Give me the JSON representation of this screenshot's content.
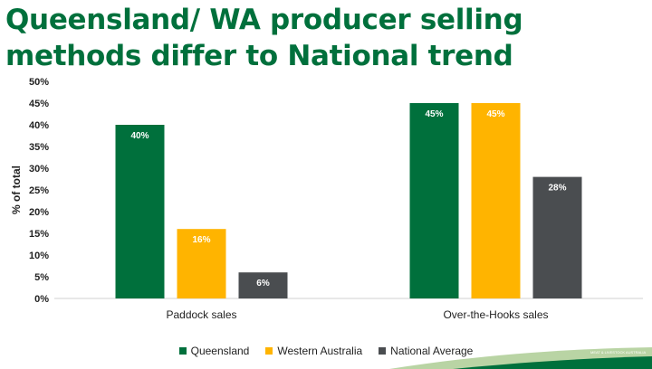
{
  "title": "Queensland/ WA producer selling methods differ to National trend",
  "brand": {
    "logo_text": "mla",
    "tagline": "MEAT & LIVESTOCK AUSTRALIA",
    "green": "#00703c",
    "light_green": "#7fb05a"
  },
  "chart_data": {
    "type": "bar",
    "ylabel": "% of total",
    "xlabel": "",
    "ylim": [
      0,
      50
    ],
    "yticks": [
      "0%",
      "5%",
      "10%",
      "15%",
      "20%",
      "25%",
      "30%",
      "35%",
      "40%",
      "45%",
      "50%"
    ],
    "categories": [
      "Paddock sales",
      "Over-the-Hooks sales"
    ],
    "series": [
      {
        "name": "Queensland",
        "values": [
          40,
          45
        ],
        "labels": [
          "40%",
          "45%"
        ],
        "color": "#00703c"
      },
      {
        "name": "Western Australia",
        "values": [
          16,
          45
        ],
        "labels": [
          "16%",
          "45%"
        ],
        "color": "#ffb400"
      },
      {
        "name": "National Average",
        "values": [
          6,
          28
        ],
        "labels": [
          "6%",
          "28%"
        ],
        "color": "#4a4d50"
      }
    ],
    "grid": false,
    "legend": "bottom"
  }
}
